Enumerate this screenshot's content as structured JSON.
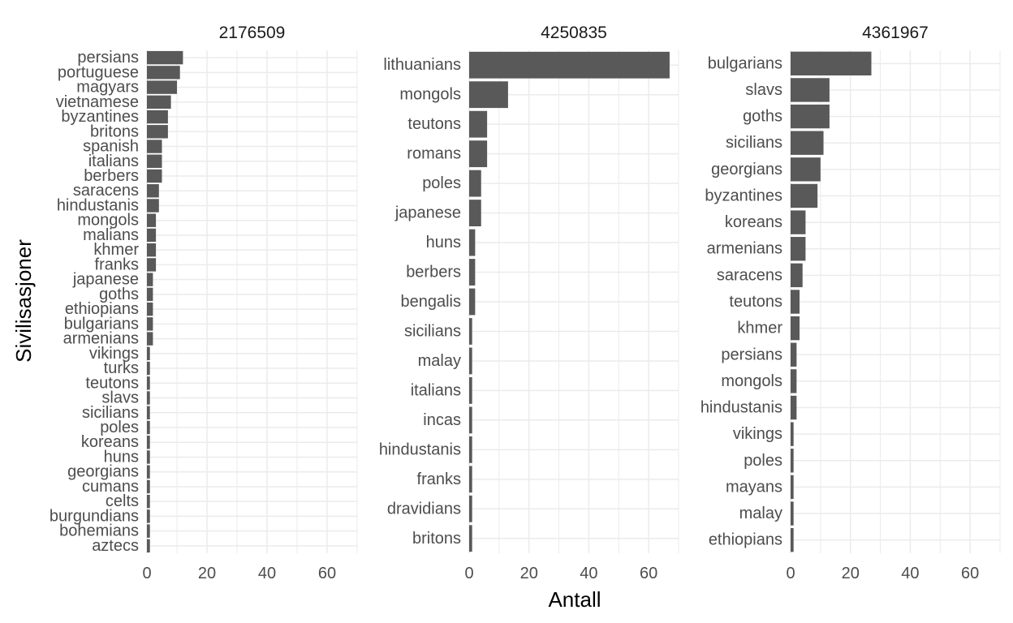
{
  "chart_data": {
    "type": "bar",
    "orientation": "horizontal",
    "xlabel": "Antall",
    "ylabel": "Sivilisasjoner",
    "xlim": [
      0,
      70
    ],
    "x_ticks": [
      0,
      20,
      40,
      60
    ],
    "grid": true,
    "bar_color": "#595959",
    "grid_color": "#ebebeb",
    "panels": [
      {
        "title": "2176509",
        "categories": [
          "persians",
          "portuguese",
          "magyars",
          "vietnamese",
          "byzantines",
          "britons",
          "spanish",
          "italians",
          "berbers",
          "saracens",
          "hindustanis",
          "mongols",
          "malians",
          "khmer",
          "franks",
          "japanese",
          "goths",
          "ethiopians",
          "bulgarians",
          "armenians",
          "vikings",
          "turks",
          "teutons",
          "slavs",
          "sicilians",
          "poles",
          "koreans",
          "huns",
          "georgians",
          "cumans",
          "celts",
          "burgundians",
          "bohemians",
          "aztecs"
        ],
        "values": [
          12,
          11,
          10,
          8,
          7,
          7,
          5,
          5,
          5,
          4,
          4,
          3,
          3,
          3,
          3,
          2,
          2,
          2,
          2,
          2,
          1,
          1,
          1,
          1,
          1,
          1,
          1,
          1,
          1,
          1,
          1,
          1,
          1,
          1
        ]
      },
      {
        "title": "4250835",
        "categories": [
          "lithuanians",
          "mongols",
          "teutons",
          "romans",
          "poles",
          "japanese",
          "huns",
          "berbers",
          "bengalis",
          "sicilians",
          "malay",
          "italians",
          "incas",
          "hindustanis",
          "franks",
          "dravidians",
          "britons"
        ],
        "values": [
          67,
          13,
          6,
          6,
          4,
          4,
          2,
          2,
          2,
          1,
          1,
          1,
          1,
          1,
          1,
          1,
          1
        ]
      },
      {
        "title": "4361967",
        "categories": [
          "bulgarians",
          "slavs",
          "goths",
          "sicilians",
          "georgians",
          "byzantines",
          "koreans",
          "armenians",
          "saracens",
          "teutons",
          "khmer",
          "persians",
          "mongols",
          "hindustanis",
          "vikings",
          "poles",
          "mayans",
          "malay",
          "ethiopians"
        ],
        "values": [
          27,
          13,
          13,
          11,
          10,
          9,
          5,
          5,
          4,
          3,
          3,
          2,
          2,
          2,
          1,
          1,
          1,
          1,
          1
        ]
      }
    ]
  }
}
